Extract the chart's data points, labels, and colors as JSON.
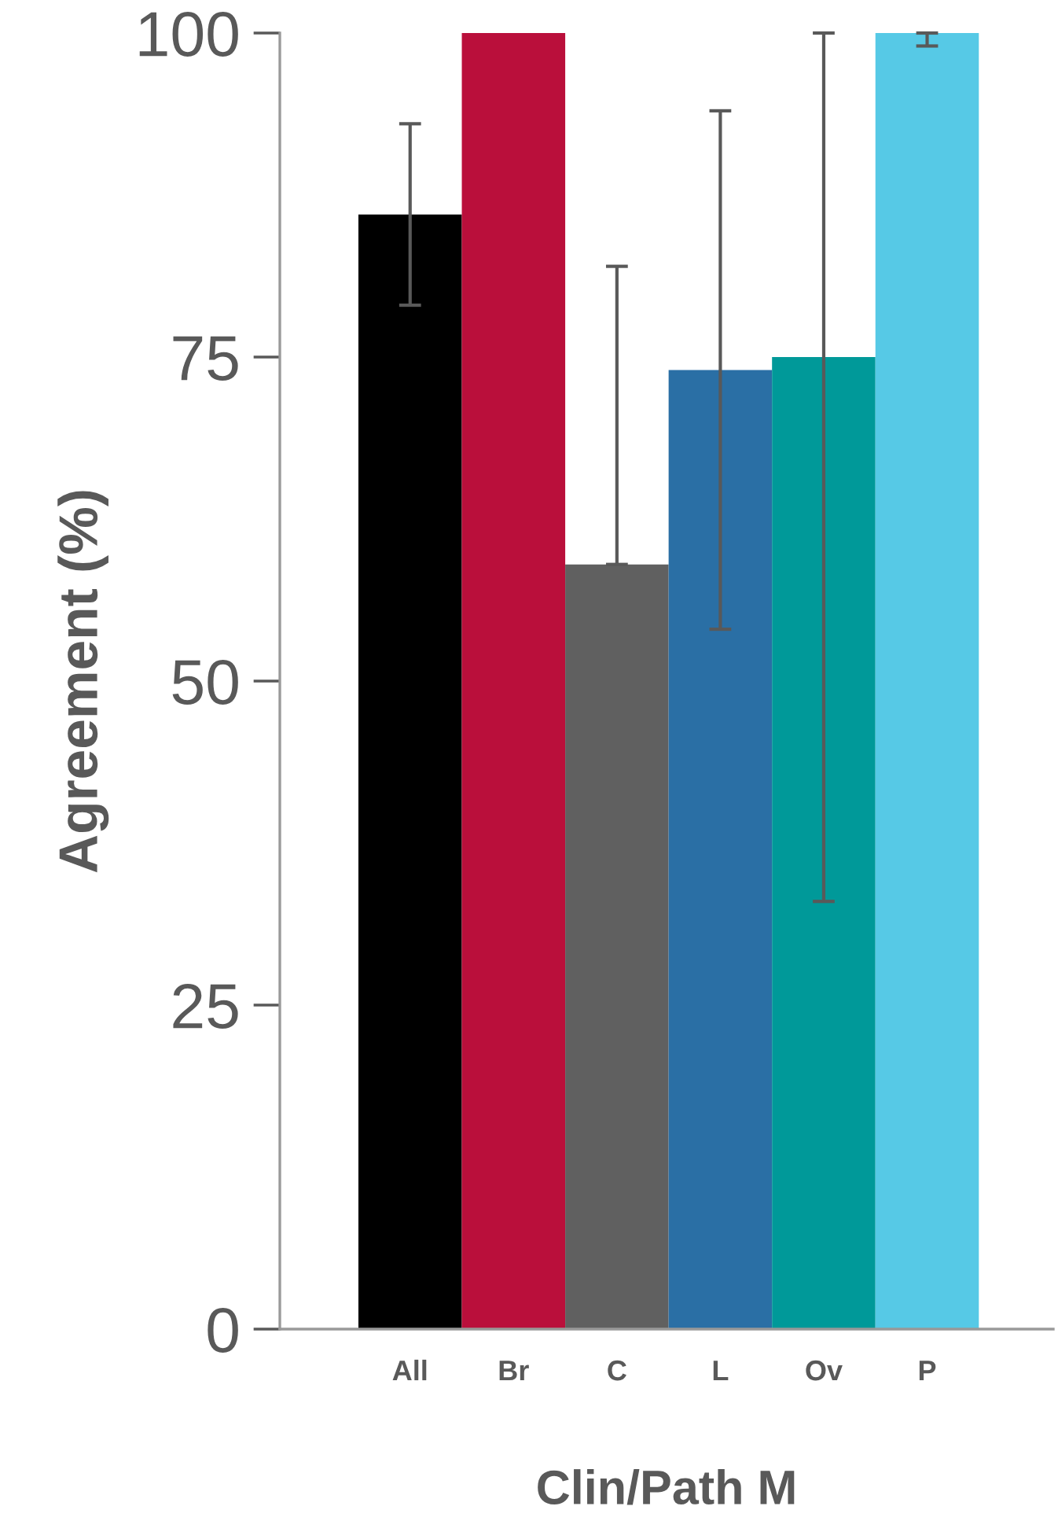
{
  "chart_data": {
    "type": "bar",
    "xlabel": "Clin/Path M",
    "ylabel": "Agreement (%)",
    "categories": [
      "All",
      "Br",
      "C",
      "L",
      "Ov",
      "P"
    ],
    "values": [
      86,
      100,
      59,
      74,
      75,
      100
    ],
    "colors": [
      "#000000",
      "#ba0f3b",
      "#606060",
      "#2a6fa5",
      "#009999",
      "#56c9e6"
    ],
    "errors": [
      [
        79,
        93
      ],
      null,
      [
        59,
        82
      ],
      [
        54,
        94
      ],
      [
        33,
        100
      ],
      [
        99,
        100
      ]
    ],
    "ylim": [
      0,
      100
    ],
    "yticks": [
      0,
      25,
      50,
      75,
      100
    ],
    "grid": false,
    "legend": false
  }
}
